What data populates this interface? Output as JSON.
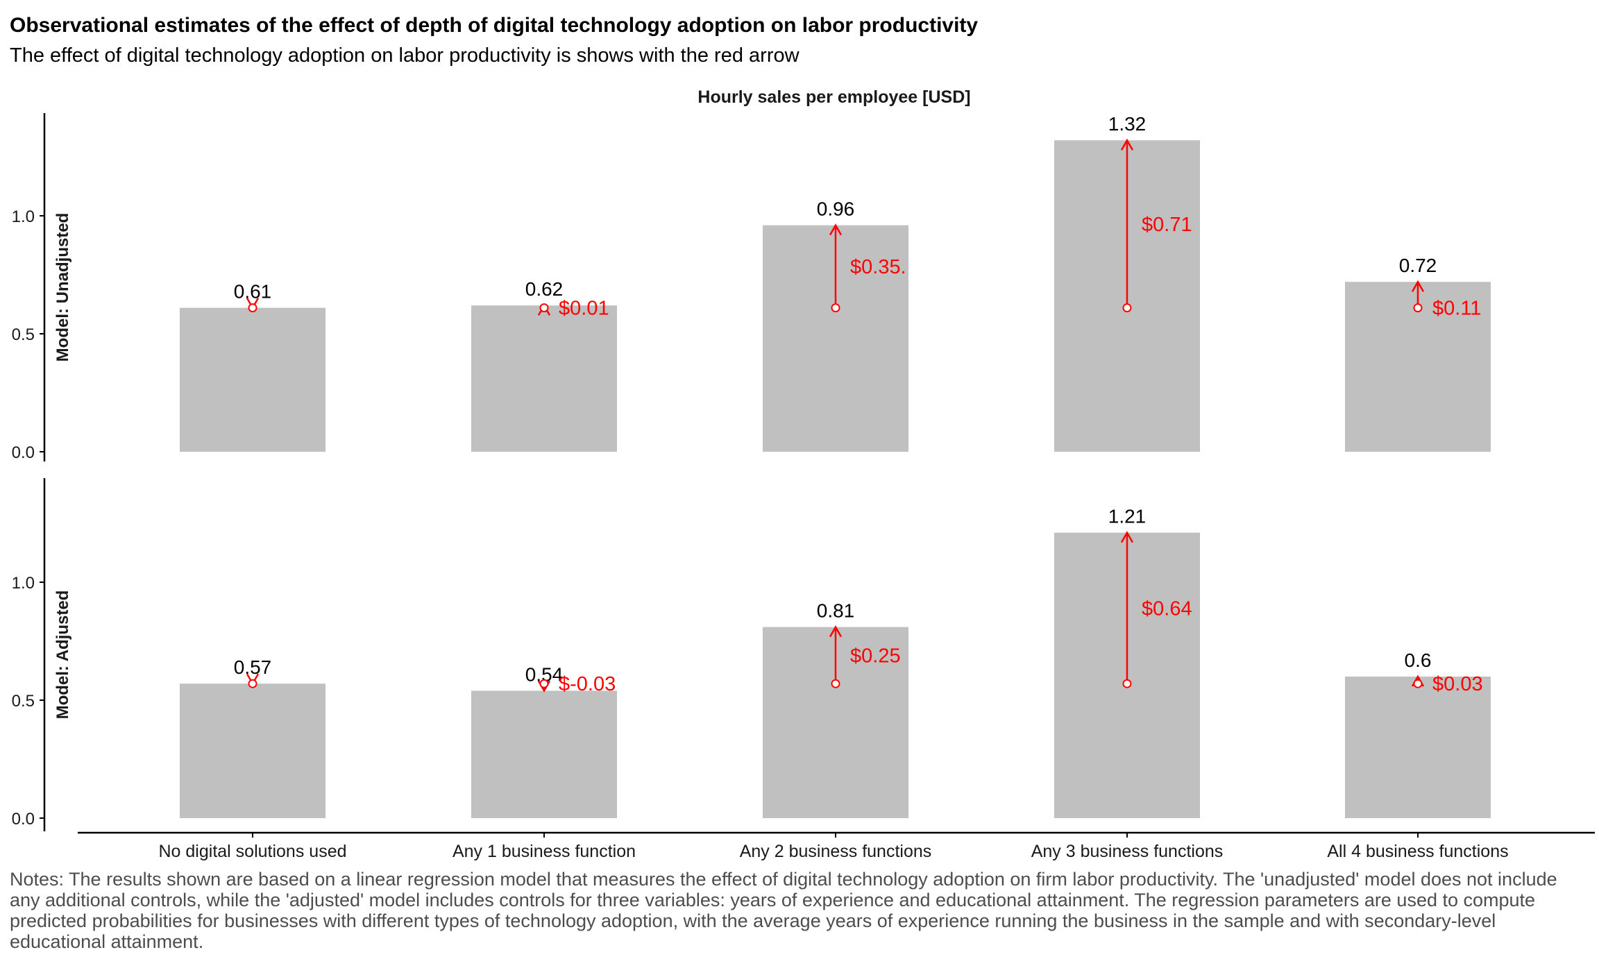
{
  "title": "Observational estimates of the effect of depth of digital technology adoption on labor productivity",
  "subtitle": "The effect of digital technology adoption on labor productivity is shows with the red arrow",
  "notes": "Notes: The results shown are based on a linear regression model that measures the effect of digital technology adoption on firm labor productivity. The 'unadjusted' model does not include any additional controls, while the 'adjusted' model includes controls for three variables: years of experience and educational attainment. The regression parameters are used to compute predicted probabilities for businesses with different types of technology adoption, with the average years of experience running the business in the sample and with secondary-level educational attainment.",
  "chart_data": {
    "type": "bar",
    "title": "Hourly sales per employee [USD]",
    "categories": [
      "No digital solutions used",
      "Any 1 business function",
      "Any 2 business functions",
      "Any 3 business functions",
      "All 4 business functions"
    ],
    "ylim": [
      0,
      1.35
    ],
    "yticks": [
      "0.0",
      "0.5",
      "1.0"
    ],
    "ytick_values": [
      0,
      0.5,
      1.0
    ],
    "bar_color": "#c0c0c0",
    "arrow_color": "#ff0000",
    "grid": false,
    "panels": [
      {
        "name": "Model: Unadjusted",
        "baseline": 0.61,
        "values": [
          0.61,
          0.62,
          0.96,
          1.32,
          0.72
        ],
        "value_labels": [
          "0.61",
          "0.62",
          "0.96",
          "1.32",
          "0.72"
        ],
        "effects": [
          0,
          0.01,
          0.35,
          0.71,
          0.11
        ],
        "effect_labels": [
          "",
          "$0.01",
          "$0.35.",
          "$0.71",
          "$0.11"
        ]
      },
      {
        "name": "Model: Adjusted",
        "baseline": 0.57,
        "values": [
          0.57,
          0.54,
          0.81,
          1.21,
          0.6
        ],
        "value_labels": [
          "0.57",
          "0.54",
          "0.81",
          "1.21",
          "0.6"
        ],
        "effects": [
          0,
          -0.03,
          0.25,
          0.64,
          0.03
        ],
        "effect_labels": [
          "",
          "$-0.03",
          "$0.25",
          "$0.64",
          "$0.03"
        ]
      }
    ]
  }
}
